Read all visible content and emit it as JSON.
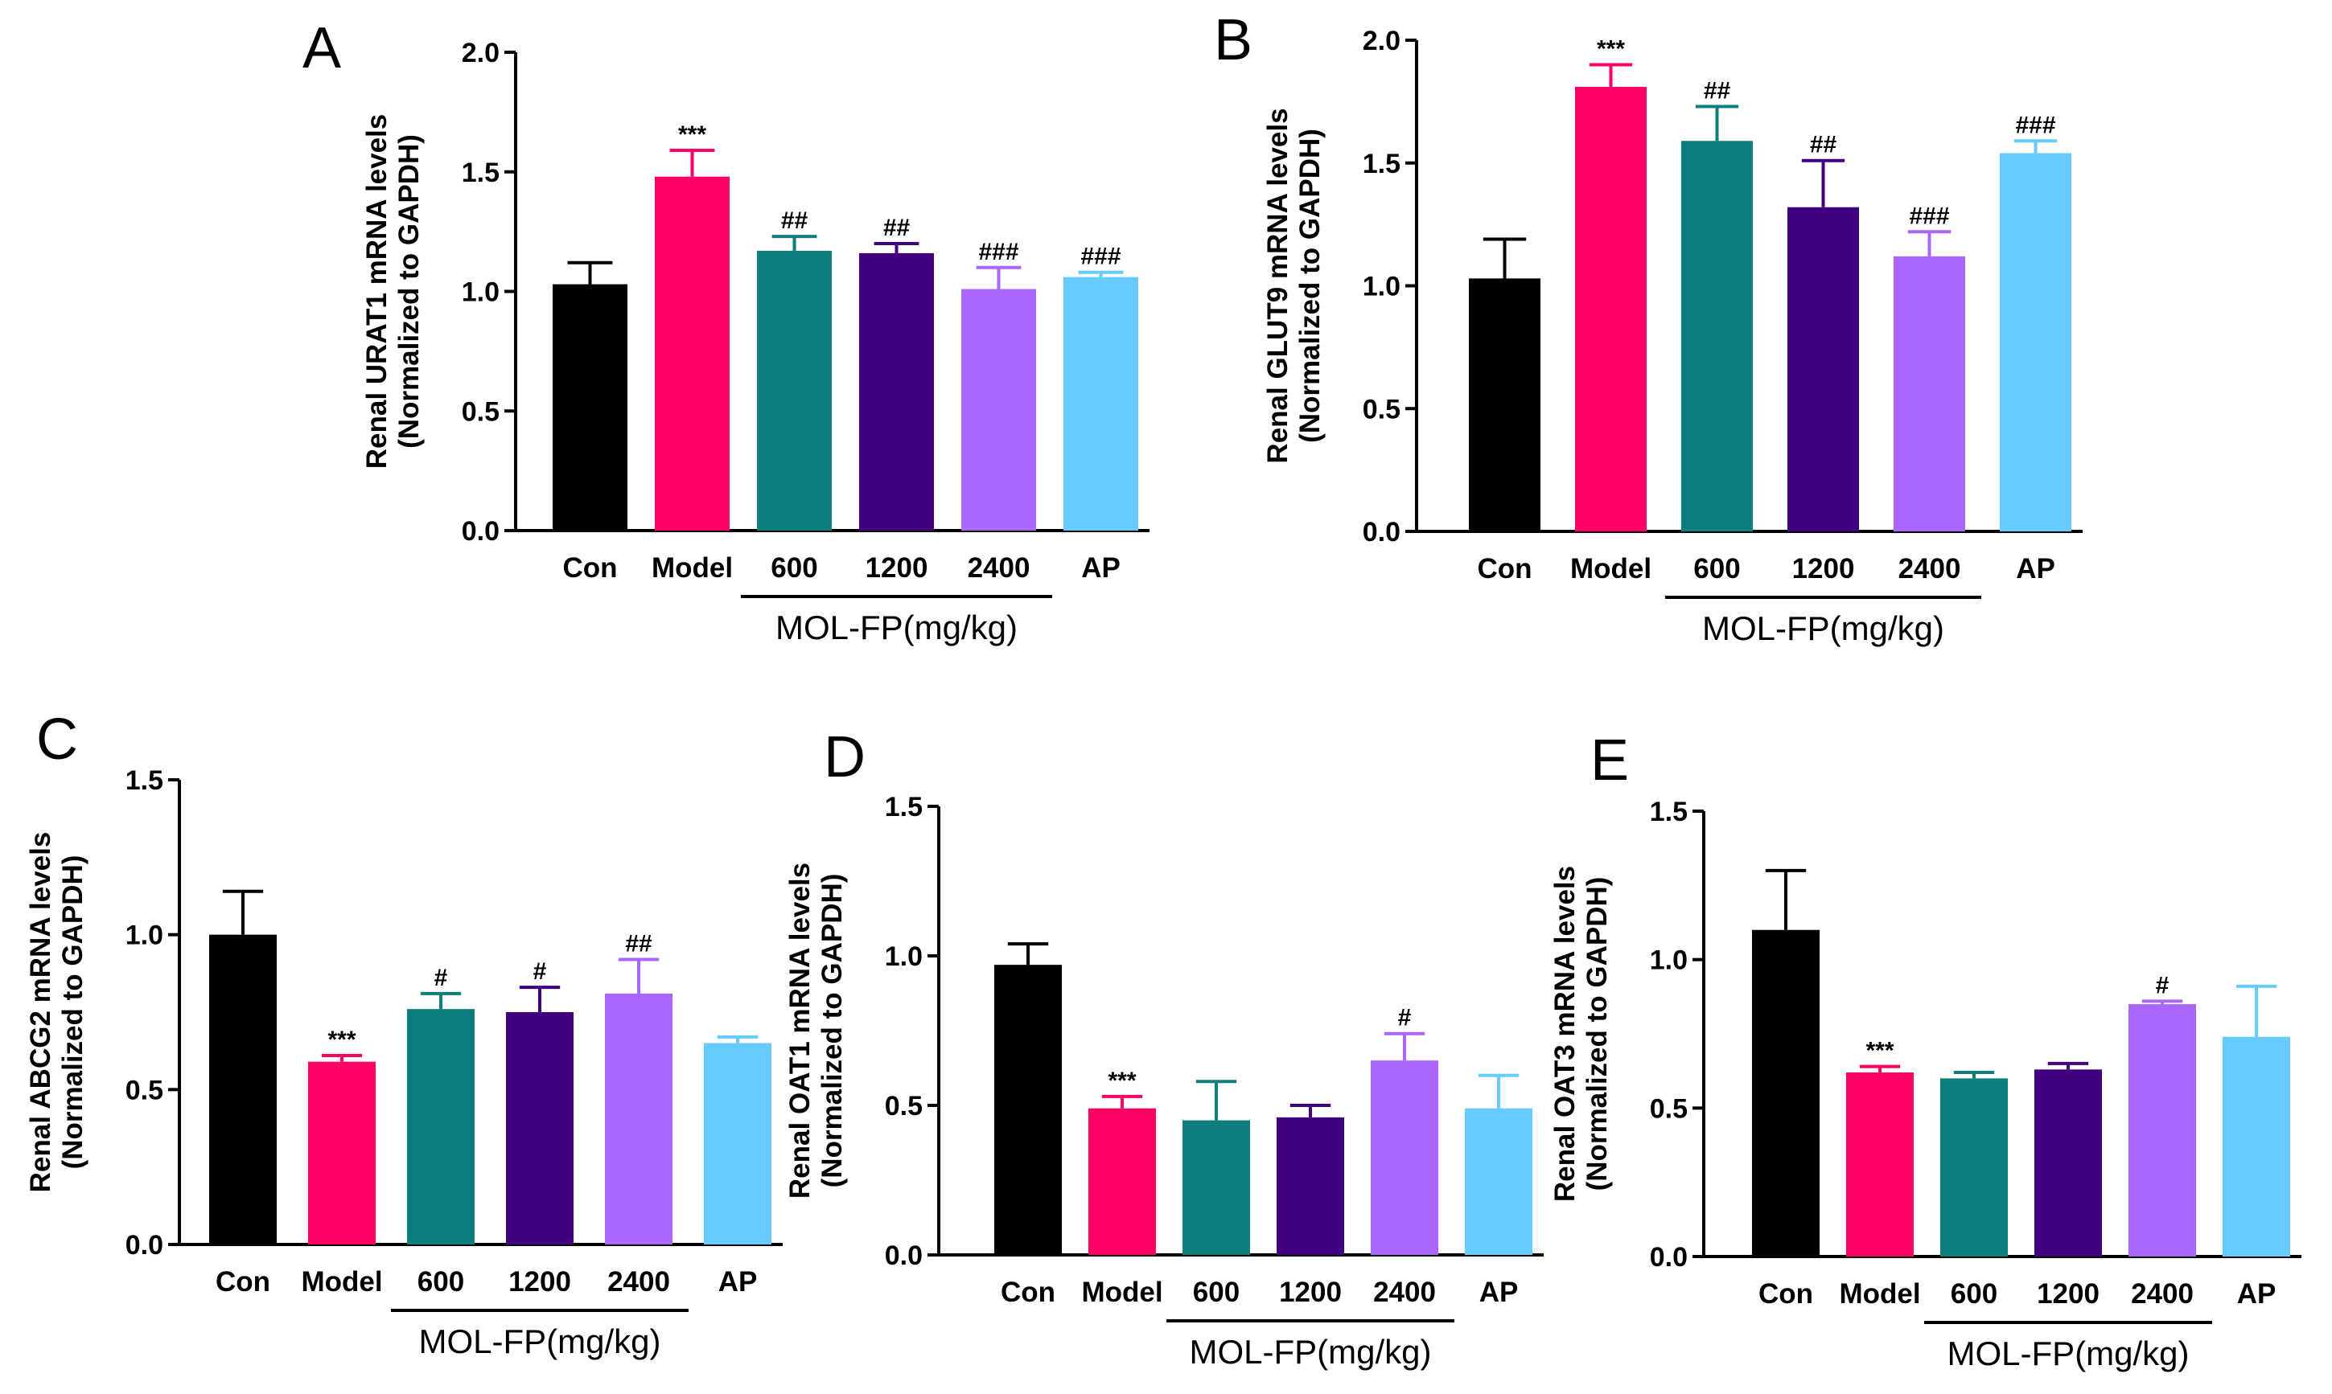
{
  "colors": [
    "#000000",
    "#ff0066",
    "#0e7f7c",
    "#41007f",
    "#ab66ff",
    "#66ccff"
  ],
  "chart_data": [
    {
      "type": "bar",
      "panel": "A",
      "ylabel": [
        "Renal URAT1 mRNA levels",
        "(Normalized to GAPDH)"
      ],
      "ylim": [
        0,
        2.0
      ],
      "yticks": [
        "0.0",
        "0.5",
        "1.0",
        "1.5",
        "2.0"
      ],
      "ytick_values": [
        0,
        0.5,
        1.0,
        1.5,
        2.0
      ],
      "categories": [
        "Con",
        "Model",
        "600",
        "1200",
        "2400",
        "AP"
      ],
      "values": [
        1.03,
        1.48,
        1.17,
        1.16,
        1.01,
        1.06
      ],
      "error_upper": [
        1.12,
        1.59,
        1.23,
        1.2,
        1.1,
        1.08
      ],
      "significance": [
        "",
        "***",
        "##",
        "##",
        "###",
        "###"
      ],
      "group_label": "MOL-FP(mg/kg)"
    },
    {
      "type": "bar",
      "panel": "B",
      "ylabel": [
        "Renal GLUT9 mRNA levels",
        "(Normalized to GAPDH)"
      ],
      "ylim": [
        0,
        2.0
      ],
      "yticks": [
        "0.0",
        "0.5",
        "1.0",
        "1.5",
        "2.0"
      ],
      "ytick_values": [
        0,
        0.5,
        1.0,
        1.5,
        2.0
      ],
      "categories": [
        "Con",
        "Model",
        "600",
        "1200",
        "2400",
        "AP"
      ],
      "values": [
        1.03,
        1.81,
        1.59,
        1.32,
        1.12,
        1.54
      ],
      "error_upper": [
        1.19,
        1.9,
        1.73,
        1.51,
        1.22,
        1.59
      ],
      "significance": [
        "",
        "***",
        "##",
        "##",
        "###",
        "###"
      ],
      "group_label": "MOL-FP(mg/kg)"
    },
    {
      "type": "bar",
      "panel": "C",
      "ylabel": [
        "Renal ABCG2 mRNA levels",
        "(Normalized to GAPDH)"
      ],
      "ylim": [
        0,
        1.5
      ],
      "yticks": [
        "0.0",
        "0.5",
        "1.0",
        "1.5"
      ],
      "ytick_values": [
        0,
        0.5,
        1.0,
        1.5
      ],
      "categories": [
        "Con",
        "Model",
        "600",
        "1200",
        "2400",
        "AP"
      ],
      "values": [
        1.0,
        0.59,
        0.76,
        0.75,
        0.81,
        0.65
      ],
      "error_upper": [
        1.14,
        0.61,
        0.81,
        0.83,
        0.92,
        0.67
      ],
      "significance": [
        "",
        "***",
        "#",
        "#",
        "##",
        ""
      ],
      "group_label": "MOL-FP(mg/kg)"
    },
    {
      "type": "bar",
      "panel": "D",
      "ylabel": [
        "Renal OAT1 mRNA levels",
        "(Normalized to GAPDH)"
      ],
      "ylim": [
        0,
        1.5
      ],
      "yticks": [
        "0.0",
        "0.5",
        "1.0",
        "1.5"
      ],
      "ytick_values": [
        0,
        0.5,
        1.0,
        1.5
      ],
      "categories": [
        "Con",
        "Model",
        "600",
        "1200",
        "2400",
        "AP"
      ],
      "values": [
        0.97,
        0.49,
        0.45,
        0.46,
        0.65,
        0.49
      ],
      "error_upper": [
        1.04,
        0.53,
        0.58,
        0.5,
        0.74,
        0.6
      ],
      "significance": [
        "",
        "***",
        "",
        "",
        "#",
        ""
      ],
      "group_label": "MOL-FP(mg/kg)"
    },
    {
      "type": "bar",
      "panel": "E",
      "ylabel": [
        "Renal OAT3 mRNA levels",
        "(Normalized to GAPDH)"
      ],
      "ylim": [
        0,
        1.5
      ],
      "yticks": [
        "0.0",
        "0.5",
        "1.0",
        "1.5"
      ],
      "ytick_values": [
        0,
        0.5,
        1.0,
        1.5
      ],
      "categories": [
        "Con",
        "Model",
        "600",
        "1200",
        "2400",
        "AP"
      ],
      "values": [
        1.1,
        0.62,
        0.6,
        0.63,
        0.85,
        0.74
      ],
      "error_upper": [
        1.3,
        0.64,
        0.62,
        0.65,
        0.86,
        0.91
      ],
      "significance": [
        "",
        "***",
        "",
        "",
        "#",
        ""
      ],
      "group_label": "MOL-FP(mg/kg)"
    }
  ]
}
